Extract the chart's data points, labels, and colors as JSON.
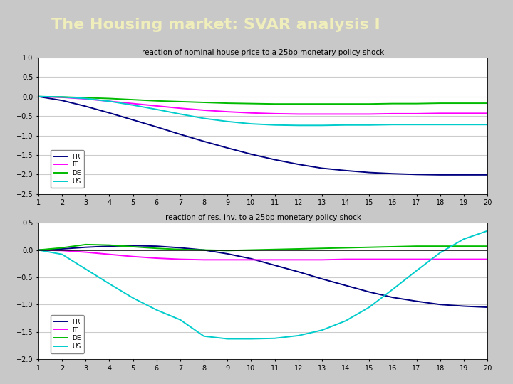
{
  "title": "The Housing market: SVAR analysis I",
  "title_bg_color": "#1f4ea1",
  "title_text_color": "#f0eebb",
  "fig_bg_color": "#c8c8c8",
  "plot_bg_color": "#ffffff",
  "grid_color": "#cccccc",
  "plot1_title": "reaction of nominal house price to a 25bp monetary policy shock",
  "plot1_ylim": [
    -2.5,
    1.0
  ],
  "plot1_yticks": [
    1.0,
    0.5,
    0.0,
    -0.5,
    -1.0,
    -1.5,
    -2.0,
    -2.5
  ],
  "plot2_title": "reaction of res. inv. to a 25bp monetary policy shock",
  "plot2_ylim": [
    -2.0,
    0.5
  ],
  "plot2_yticks": [
    0.5,
    0.0,
    -0.5,
    -1.0,
    -1.5,
    -2.0
  ],
  "x": [
    1,
    2,
    3,
    4,
    5,
    6,
    7,
    8,
    9,
    10,
    11,
    12,
    13,
    14,
    15,
    16,
    17,
    18,
    19,
    20
  ],
  "plot1_FR": [
    0.0,
    -0.1,
    -0.25,
    -0.42,
    -0.6,
    -0.78,
    -0.97,
    -1.15,
    -1.32,
    -1.48,
    -1.62,
    -1.74,
    -1.84,
    -1.9,
    -1.95,
    -1.98,
    -2.0,
    -2.01,
    -2.01,
    -2.01
  ],
  "plot1_IT": [
    0.0,
    -0.02,
    -0.06,
    -0.12,
    -0.18,
    -0.24,
    -0.3,
    -0.35,
    -0.39,
    -0.42,
    -0.44,
    -0.45,
    -0.45,
    -0.45,
    -0.45,
    -0.44,
    -0.44,
    -0.43,
    -0.43,
    -0.43
  ],
  "plot1_DE": [
    0.0,
    -0.01,
    -0.03,
    -0.05,
    -0.08,
    -0.11,
    -0.13,
    -0.15,
    -0.17,
    -0.18,
    -0.19,
    -0.19,
    -0.19,
    -0.19,
    -0.19,
    -0.18,
    -0.18,
    -0.17,
    -0.17,
    -0.17
  ],
  "plot1_US": [
    0.0,
    -0.01,
    -0.05,
    -0.12,
    -0.22,
    -0.33,
    -0.45,
    -0.56,
    -0.64,
    -0.7,
    -0.73,
    -0.74,
    -0.74,
    -0.73,
    -0.73,
    -0.72,
    -0.72,
    -0.72,
    -0.72,
    -0.72
  ],
  "plot2_FR": [
    0.0,
    0.02,
    0.05,
    0.07,
    0.08,
    0.07,
    0.04,
    0.0,
    -0.07,
    -0.16,
    -0.28,
    -0.4,
    -0.53,
    -0.65,
    -0.77,
    -0.87,
    -0.94,
    -1.0,
    -1.03,
    -1.05
  ],
  "plot2_IT": [
    0.0,
    -0.01,
    -0.04,
    -0.08,
    -0.12,
    -0.15,
    -0.17,
    -0.18,
    -0.18,
    -0.18,
    -0.18,
    -0.18,
    -0.18,
    -0.17,
    -0.17,
    -0.17,
    -0.17,
    -0.17,
    -0.17,
    -0.17
  ],
  "plot2_DE": [
    0.0,
    0.04,
    0.1,
    0.09,
    0.06,
    0.03,
    0.01,
    0.0,
    -0.01,
    0.0,
    0.01,
    0.02,
    0.03,
    0.04,
    0.05,
    0.06,
    0.07,
    0.07,
    0.07,
    0.07
  ],
  "plot2_US": [
    0.0,
    -0.08,
    -0.35,
    -0.62,
    -0.88,
    -1.1,
    -1.28,
    -1.58,
    -1.63,
    -1.63,
    -1.62,
    -1.57,
    -1.47,
    -1.3,
    -1.05,
    -0.72,
    -0.38,
    -0.05,
    0.2,
    0.35
  ],
  "color_FR": "#000080",
  "color_IT": "#ff00ff",
  "color_DE": "#00bb00",
  "color_US": "#00cccc",
  "xticks": [
    1,
    2,
    3,
    4,
    5,
    6,
    7,
    8,
    9,
    10,
    11,
    12,
    13,
    14,
    15,
    16,
    17,
    18,
    19,
    20
  ]
}
